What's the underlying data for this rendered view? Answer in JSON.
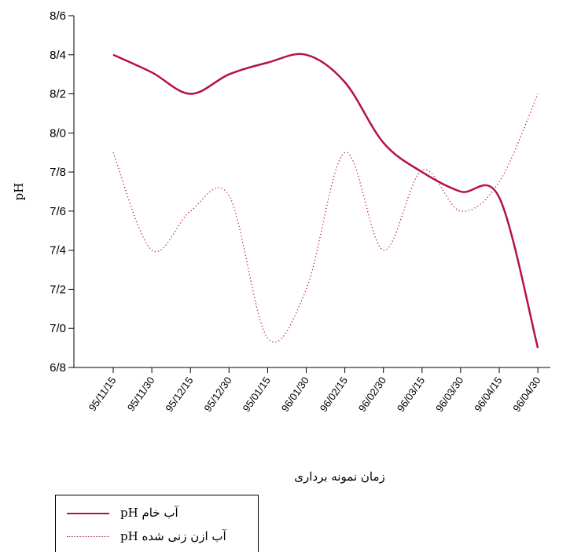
{
  "chart_data": {
    "type": "line",
    "title": "",
    "xlabel": "زمان نمونه برداری",
    "ylabel": "pH",
    "categories": [
      "95/11/15",
      "95/11/30",
      "95/12/15",
      "95/12/30",
      "95/01/15",
      "96/01/30",
      "96/02/15",
      "96/02/30",
      "96/03/15",
      "96/03/30",
      "96/04/15",
      "96/04/30"
    ],
    "ylim": [
      6.8,
      8.6
    ],
    "ytick_values": [
      6.8,
      7.0,
      7.2,
      7.4,
      7.6,
      7.8,
      8.0,
      8.2,
      8.4,
      8.6
    ],
    "ytick_labels": [
      "6/8",
      "7/0",
      "7/2",
      "7/4",
      "7/6",
      "7/8",
      "8/0",
      "8/2",
      "8/4",
      "8/6"
    ],
    "grid": false,
    "legend_position": "bottom-left",
    "series": [
      {
        "name": "pH آب خام",
        "style": "solid",
        "color": "#b5123f",
        "values": [
          8.4,
          8.31,
          8.2,
          8.3,
          8.36,
          8.4,
          8.26,
          7.95,
          7.8,
          7.7,
          7.67,
          6.9
        ]
      },
      {
        "name": "pH آب ازن زنی شده",
        "style": "dotted",
        "color": "#b5123f",
        "values": [
          7.9,
          7.4,
          7.6,
          7.68,
          6.95,
          7.2,
          7.9,
          7.4,
          7.81,
          7.6,
          7.75,
          8.2
        ]
      }
    ]
  }
}
